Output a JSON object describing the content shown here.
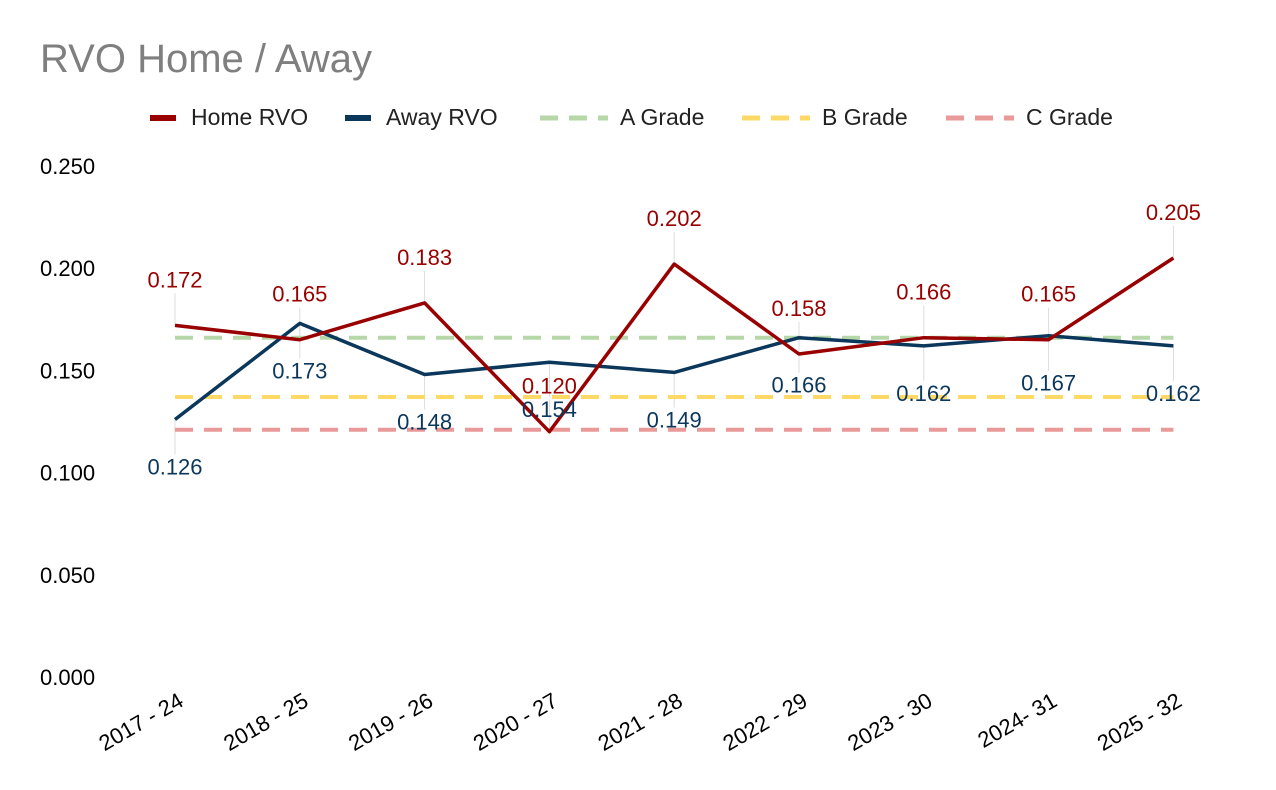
{
  "chart_data": {
    "type": "line",
    "title": "RVO Home / Away",
    "xlabel": "",
    "ylabel": "",
    "ylim": [
      0,
      0.25
    ],
    "yticks": [
      "0.000",
      "0.050",
      "0.100",
      "0.150",
      "0.200",
      "0.250"
    ],
    "ytick_values": [
      0,
      0.05,
      0.1,
      0.15,
      0.2,
      0.25
    ],
    "categories": [
      "2017 - 24",
      "2018 - 25",
      "2019 - 26",
      "2020 - 27",
      "2021 - 28",
      "2022 - 29",
      "2023 - 30",
      "2024- 31",
      "2025 - 32"
    ],
    "grid": false,
    "legend_position": "top",
    "series": [
      {
        "name": "Home RVO",
        "style": "solid",
        "color": "#990000",
        "values": [
          0.172,
          0.165,
          0.183,
          0.12,
          0.202,
          0.158,
          0.166,
          0.165,
          0.205
        ],
        "labels": [
          "0.172",
          "0.165",
          "0.183",
          "0.120",
          "0.202",
          "0.158",
          "0.166",
          "0.165",
          "0.205"
        ]
      },
      {
        "name": "Away RVO",
        "style": "solid",
        "color": "#0b375b",
        "values": [
          0.126,
          0.173,
          0.148,
          0.154,
          0.149,
          0.166,
          0.162,
          0.167,
          0.162
        ],
        "labels": [
          "0.126",
          "0.173",
          "0.148",
          "0.154",
          "0.149",
          "0.166",
          "0.162",
          "0.167",
          "0.162"
        ]
      },
      {
        "name": "A Grade",
        "style": "dashed",
        "color": "#b6d7a8",
        "values": [
          0.166,
          0.166,
          0.166,
          0.166,
          0.166,
          0.166,
          0.166,
          0.166,
          0.166
        ]
      },
      {
        "name": "B Grade",
        "style": "dashed",
        "color": "#ffd966",
        "values": [
          0.137,
          0.137,
          0.137,
          0.137,
          0.137,
          0.137,
          0.137,
          0.137,
          0.137
        ]
      },
      {
        "name": "C Grade",
        "style": "dashed",
        "color": "#ea9999",
        "values": [
          0.121,
          0.121,
          0.121,
          0.121,
          0.121,
          0.121,
          0.121,
          0.121,
          0.121
        ]
      }
    ]
  }
}
